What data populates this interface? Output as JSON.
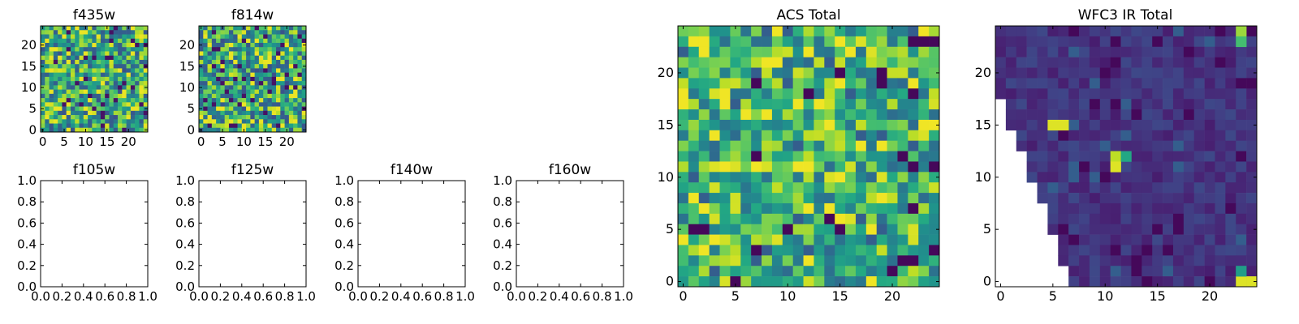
{
  "chart_data": [
    {
      "type": "heatmap",
      "title": "f435w",
      "xticks": [
        "0",
        "5",
        "10",
        "15",
        "20"
      ],
      "yticks": [
        "0",
        "5",
        "10",
        "15",
        "20"
      ],
      "grid_size": 25,
      "colormap": "viridis",
      "value_range": [
        0,
        1
      ],
      "values_note": ""
    },
    {
      "type": "heatmap",
      "title": "f814w",
      "xticks": [
        "0",
        "5",
        "10",
        "15",
        "20"
      ],
      "yticks": [
        "0",
        "5",
        "10",
        "15",
        "20"
      ],
      "grid_size": 25,
      "colormap": "viridis",
      "value_range": [
        0,
        1
      ]
    },
    {
      "type": "empty",
      "title": "f105w",
      "xticks": [
        "0.0",
        "0.2",
        "0.4",
        "0.6",
        "0.8",
        "1.0"
      ],
      "yticks": [
        "0.0",
        "0.2",
        "0.4",
        "0.6",
        "0.8",
        "1.0"
      ],
      "xlim": [
        0,
        1
      ],
      "ylim": [
        0,
        1
      ]
    },
    {
      "type": "empty",
      "title": "f125w",
      "xticks": [
        "0.0",
        "0.2",
        "0.4",
        "0.6",
        "0.8",
        "1.0"
      ],
      "yticks": [
        "0.0",
        "0.2",
        "0.4",
        "0.6",
        "0.8",
        "1.0"
      ],
      "xlim": [
        0,
        1
      ],
      "ylim": [
        0,
        1
      ]
    },
    {
      "type": "empty",
      "title": "f140w",
      "xticks": [
        "0.0",
        "0.2",
        "0.4",
        "0.6",
        "0.8",
        "1.0"
      ],
      "yticks": [
        "0.0",
        "0.2",
        "0.4",
        "0.6",
        "0.8",
        "1.0"
      ],
      "xlim": [
        0,
        1
      ],
      "ylim": [
        0,
        1
      ]
    },
    {
      "type": "empty",
      "title": "f160w",
      "xticks": [
        "0.0",
        "0.2",
        "0.4",
        "0.6",
        "0.8",
        "1.0"
      ],
      "yticks": [
        "0.0",
        "0.2",
        "0.4",
        "0.6",
        "0.8",
        "1.0"
      ],
      "xlim": [
        0,
        1
      ],
      "ylim": [
        0,
        1
      ]
    },
    {
      "type": "heatmap",
      "title": "ACS Total",
      "xticks": [
        "0",
        "5",
        "10",
        "15",
        "20"
      ],
      "yticks": [
        "0",
        "5",
        "10",
        "15",
        "20"
      ],
      "grid_size": 25,
      "colormap": "viridis",
      "value_range": [
        0,
        1
      ]
    },
    {
      "type": "heatmap",
      "title": "WFC3 IR Total",
      "xticks": [
        "0",
        "5",
        "10",
        "15",
        "20"
      ],
      "yticks": [
        "0",
        "5",
        "10",
        "15",
        "20"
      ],
      "grid_size": 25,
      "colormap": "viridis",
      "value_range": [
        0,
        1
      ],
      "masked_region": "lower-left triangle blank"
    }
  ],
  "colors": {
    "viridis_low": "#440154",
    "viridis_mid": "#21918c",
    "viridis_high": "#fde725",
    "axes": "#000000",
    "background": "#ffffff"
  }
}
